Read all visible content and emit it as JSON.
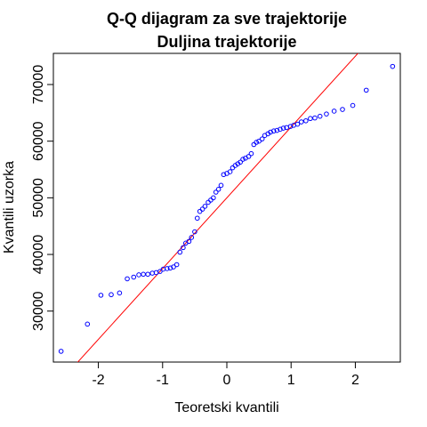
{
  "chart_data": {
    "type": "scatter",
    "title": "Q-Q dijagram za sve trajektorije",
    "subtitle": "Duljina trajektorije",
    "xlabel": "Teoretski kvantili",
    "ylabel": "Kvantili uzorka",
    "xlim": [
      -2.7,
      2.7
    ],
    "ylim": [
      21000,
      75500
    ],
    "xticks": [
      -2,
      -1,
      0,
      1,
      2
    ],
    "xtick_labels": [
      "-2",
      "-1",
      "0",
      "1",
      "2"
    ],
    "yticks": [
      30000,
      40000,
      50000,
      60000,
      70000
    ],
    "ytick_labels": [
      "30000",
      "40000",
      "50000",
      "60000",
      "70000"
    ],
    "grid": false,
    "point_color": "#0000ff",
    "line_color": "#ff0000",
    "reference_line": {
      "slope": 12500,
      "intercept": 50000
    },
    "points": [
      [
        -2.58,
        22900
      ],
      [
        -2.17,
        27700
      ],
      [
        -1.96,
        32800
      ],
      [
        -1.8,
        32900
      ],
      [
        -1.67,
        33200
      ],
      [
        -1.55,
        35700
      ],
      [
        -1.45,
        36000
      ],
      [
        -1.37,
        36400
      ],
      [
        -1.3,
        36500
      ],
      [
        -1.23,
        36500
      ],
      [
        -1.16,
        36700
      ],
      [
        -1.1,
        36800
      ],
      [
        -1.04,
        37000
      ],
      [
        -0.99,
        37400
      ],
      [
        -0.93,
        37500
      ],
      [
        -0.88,
        37600
      ],
      [
        -0.83,
        37800
      ],
      [
        -0.78,
        38200
      ],
      [
        -0.73,
        40400
      ],
      [
        -0.68,
        41200
      ],
      [
        -0.64,
        42000
      ],
      [
        -0.59,
        42300
      ],
      [
        -0.55,
        43000
      ],
      [
        -0.5,
        44000
      ],
      [
        -0.46,
        46400
      ],
      [
        -0.42,
        47600
      ],
      [
        -0.38,
        48000
      ],
      [
        -0.34,
        48500
      ],
      [
        -0.29,
        49200
      ],
      [
        -0.25,
        49600
      ],
      [
        -0.21,
        50000
      ],
      [
        -0.17,
        51000
      ],
      [
        -0.13,
        51500
      ],
      [
        -0.09,
        52200
      ],
      [
        -0.05,
        54100
      ],
      [
        0.0,
        54300
      ],
      [
        0.05,
        54600
      ],
      [
        0.09,
        55300
      ],
      [
        0.13,
        55700
      ],
      [
        0.17,
        56000
      ],
      [
        0.21,
        56300
      ],
      [
        0.25,
        56800
      ],
      [
        0.29,
        57000
      ],
      [
        0.34,
        57300
      ],
      [
        0.38,
        57800
      ],
      [
        0.42,
        59400
      ],
      [
        0.46,
        59800
      ],
      [
        0.5,
        60000
      ],
      [
        0.55,
        60400
      ],
      [
        0.59,
        61000
      ],
      [
        0.64,
        61300
      ],
      [
        0.68,
        61600
      ],
      [
        0.73,
        61800
      ],
      [
        0.78,
        61900
      ],
      [
        0.83,
        62100
      ],
      [
        0.88,
        62300
      ],
      [
        0.93,
        62400
      ],
      [
        0.99,
        62600
      ],
      [
        1.04,
        62800
      ],
      [
        1.1,
        63000
      ],
      [
        1.16,
        63400
      ],
      [
        1.23,
        63600
      ],
      [
        1.3,
        64000
      ],
      [
        1.37,
        64100
      ],
      [
        1.45,
        64400
      ],
      [
        1.55,
        64800
      ],
      [
        1.67,
        65300
      ],
      [
        1.8,
        65600
      ],
      [
        1.96,
        66300
      ],
      [
        2.17,
        69000
      ],
      [
        2.58,
        73200
      ]
    ]
  }
}
